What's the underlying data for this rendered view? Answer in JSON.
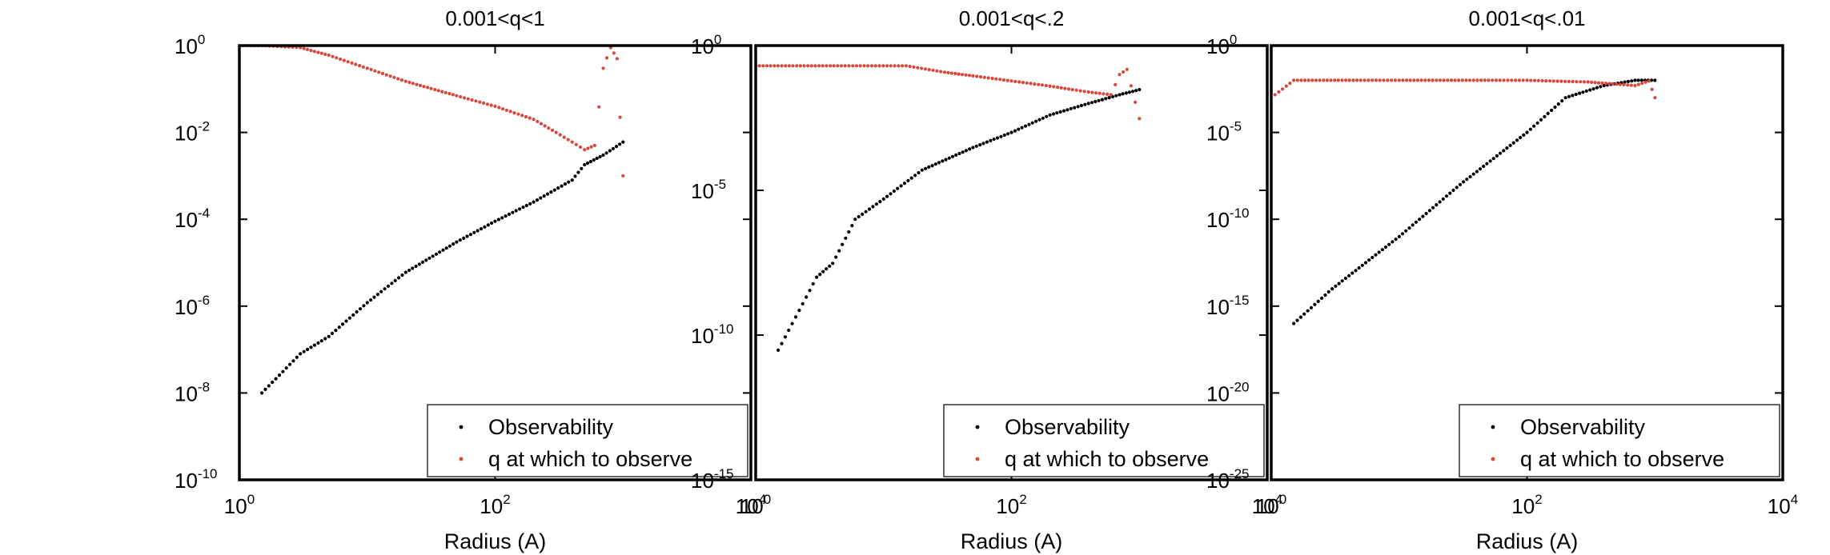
{
  "chart_data": [
    {
      "type": "scatter",
      "title": "0.001<q<1",
      "xlabel": "Radius (A)",
      "ylabel": "",
      "xscale": "log",
      "yscale": "log",
      "xlim": [
        1,
        10000
      ],
      "ylim": [
        1e-10,
        1
      ],
      "xticks": [
        {
          "base": "10",
          "exp": "0",
          "value": 1
        },
        {
          "base": "10",
          "exp": "2",
          "value": 100
        },
        {
          "base": "10",
          "exp": "4",
          "value": 10000
        }
      ],
      "yticks": [
        {
          "base": "10",
          "exp": "0",
          "value": 1
        },
        {
          "base": "10",
          "exp": "-2",
          "value": 0.01
        },
        {
          "base": "10",
          "exp": "-4",
          "value": 0.0001
        },
        {
          "base": "10",
          "exp": "-6",
          "value": 1e-06
        },
        {
          "base": "10",
          "exp": "-8",
          "value": 1e-08
        },
        {
          "base": "10",
          "exp": "-10",
          "value": 1e-10
        }
      ],
      "legend": {
        "position": "bottom-right",
        "entries": [
          "Observability",
          "q at which to observe"
        ]
      },
      "series": [
        {
          "name": "Observability",
          "color": "#000000",
          "points": [
            [
              1.5,
              1e-08
            ],
            [
              3,
              8e-08
            ],
            [
              5,
              2e-07
            ],
            [
              10,
              1.2e-06
            ],
            [
              20,
              6e-06
            ],
            [
              50,
              3e-05
            ],
            [
              100,
              9e-05
            ],
            [
              200,
              0.00025
            ],
            [
              400,
              0.0008
            ],
            [
              500,
              0.0018
            ],
            [
              700,
              0.003
            ],
            [
              1000,
              0.006
            ]
          ]
        },
        {
          "name": "q at which to observe",
          "color": "#d9473b",
          "points": [
            [
              1,
              1
            ],
            [
              1.5,
              1
            ],
            [
              3,
              0.9
            ],
            [
              5,
              0.6
            ],
            [
              10,
              0.3
            ],
            [
              20,
              0.15
            ],
            [
              50,
              0.07
            ],
            [
              100,
              0.04
            ],
            [
              200,
              0.02
            ],
            [
              300,
              0.01
            ],
            [
              400,
              0.006
            ],
            [
              500,
              0.004
            ],
            [
              600,
              0.005
            ],
            [
              700,
              0.3
            ],
            [
              800,
              0.9
            ],
            [
              900,
              0.5
            ],
            [
              1000,
              0.001
            ]
          ]
        }
      ]
    },
    {
      "type": "scatter",
      "title": "0.001<q<.2",
      "xlabel": "Radius (A)",
      "ylabel": "",
      "xscale": "log",
      "yscale": "log",
      "xlim": [
        1,
        10000
      ],
      "ylim": [
        1e-15,
        1
      ],
      "xticks": [
        {
          "base": "10",
          "exp": "0",
          "value": 1
        },
        {
          "base": "10",
          "exp": "2",
          "value": 100
        },
        {
          "base": "10",
          "exp": "4",
          "value": 10000
        }
      ],
      "yticks": [
        {
          "base": "10",
          "exp": "0",
          "value": 1
        },
        {
          "base": "10",
          "exp": "-5",
          "value": 1e-05
        },
        {
          "base": "10",
          "exp": "-10",
          "value": 1e-10
        },
        {
          "base": "10",
          "exp": "-15",
          "value": 1e-15
        }
      ],
      "legend": {
        "position": "bottom-right",
        "entries": [
          "Observability",
          "q at which to observe"
        ]
      },
      "series": [
        {
          "name": "Observability",
          "color": "#000000",
          "points": [
            [
              1.5,
              3e-11
            ],
            [
              3,
              1e-08
            ],
            [
              4,
              3e-08
            ],
            [
              6,
              1e-06
            ],
            [
              10,
              5e-06
            ],
            [
              20,
              5e-05
            ],
            [
              50,
              0.0003
            ],
            [
              100,
              0.001
            ],
            [
              200,
              0.004
            ],
            [
              400,
              0.01
            ],
            [
              700,
              0.02
            ],
            [
              1000,
              0.03
            ]
          ]
        },
        {
          "name": "q at which to observe",
          "color": "#d9473b",
          "points": [
            [
              1,
              0.2
            ],
            [
              5,
              0.2
            ],
            [
              15,
              0.2
            ],
            [
              30,
              0.12
            ],
            [
              50,
              0.09
            ],
            [
              100,
              0.06
            ],
            [
              200,
              0.04
            ],
            [
              300,
              0.03
            ],
            [
              400,
              0.025
            ],
            [
              600,
              0.02
            ],
            [
              700,
              0.1
            ],
            [
              800,
              0.15
            ],
            [
              1000,
              0.003
            ]
          ]
        }
      ]
    },
    {
      "type": "scatter",
      "title": "0.001<q<.01",
      "xlabel": "Radius (A)",
      "ylabel": "",
      "xscale": "log",
      "yscale": "log",
      "xlim": [
        1,
        10000
      ],
      "ylim": [
        1e-25,
        1
      ],
      "xticks": [
        {
          "base": "10",
          "exp": "0",
          "value": 1
        },
        {
          "base": "10",
          "exp": "2",
          "value": 100
        },
        {
          "base": "10",
          "exp": "4",
          "value": 10000
        }
      ],
      "yticks": [
        {
          "base": "10",
          "exp": "0",
          "value": 1
        },
        {
          "base": "10",
          "exp": "-5",
          "value": 1e-05
        },
        {
          "base": "10",
          "exp": "-10",
          "value": 1e-10
        },
        {
          "base": "10",
          "exp": "-15",
          "value": 1e-15
        },
        {
          "base": "10",
          "exp": "-20",
          "value": 1e-20
        },
        {
          "base": "10",
          "exp": "-25",
          "value": 1e-25
        }
      ],
      "legend": {
        "position": "bottom-right",
        "entries": [
          "Observability",
          "q at which to observe"
        ]
      },
      "series": [
        {
          "name": "Observability",
          "color": "#000000",
          "points": [
            [
              1.5,
              1e-16
            ],
            [
              3,
              1e-14
            ],
            [
              10,
              1e-11
            ],
            [
              30,
              1e-08
            ],
            [
              100,
              1e-05
            ],
            [
              200,
              0.001
            ],
            [
              400,
              0.005
            ],
            [
              700,
              0.01
            ],
            [
              1000,
              0.01
            ]
          ]
        },
        {
          "name": "q at which to observe",
          "color": "#d9473b",
          "points": [
            [
              1,
              0.001
            ],
            [
              1.5,
              0.01
            ],
            [
              5,
              0.01
            ],
            [
              10,
              0.01
            ],
            [
              50,
              0.01
            ],
            [
              100,
              0.01
            ],
            [
              300,
              0.008
            ],
            [
              500,
              0.006
            ],
            [
              700,
              0.005
            ],
            [
              900,
              0.009
            ],
            [
              1000,
              0.001
            ]
          ]
        }
      ]
    }
  ]
}
